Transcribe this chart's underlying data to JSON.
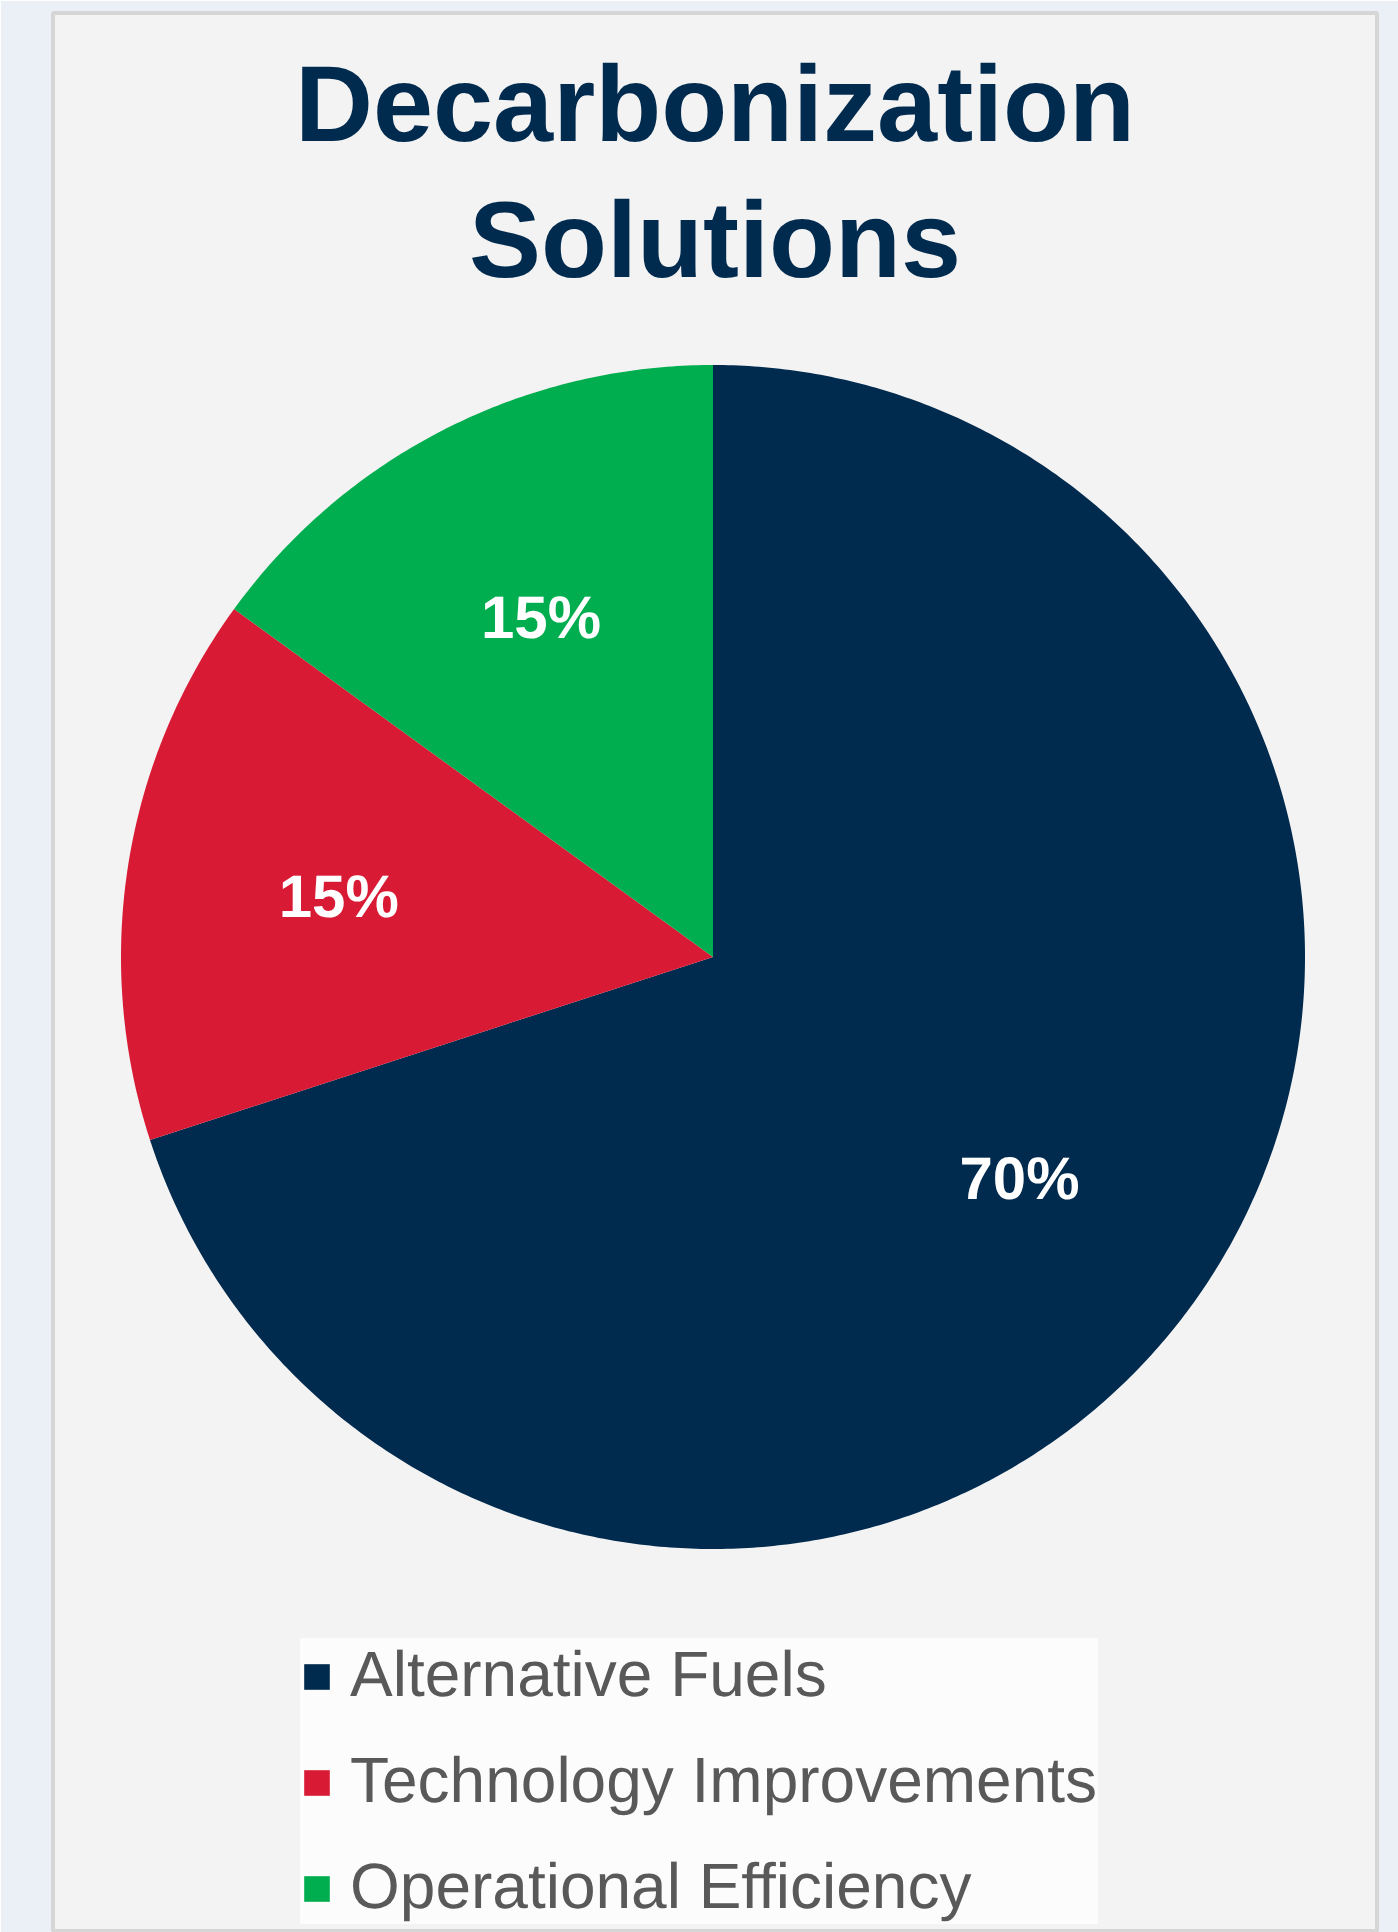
{
  "chart_data": {
    "type": "pie",
    "title": "Decarbonization Solutions",
    "categories": [
      "Alternative Fuels",
      "Technology Improvements",
      "Operational Efficiency"
    ],
    "values": [
      70,
      15,
      15
    ],
    "colors": [
      "#002a4e",
      "#d91a35",
      "#00ad4f"
    ],
    "value_labels": [
      "70%",
      "15%",
      "15%"
    ],
    "legend": "bottom"
  }
}
